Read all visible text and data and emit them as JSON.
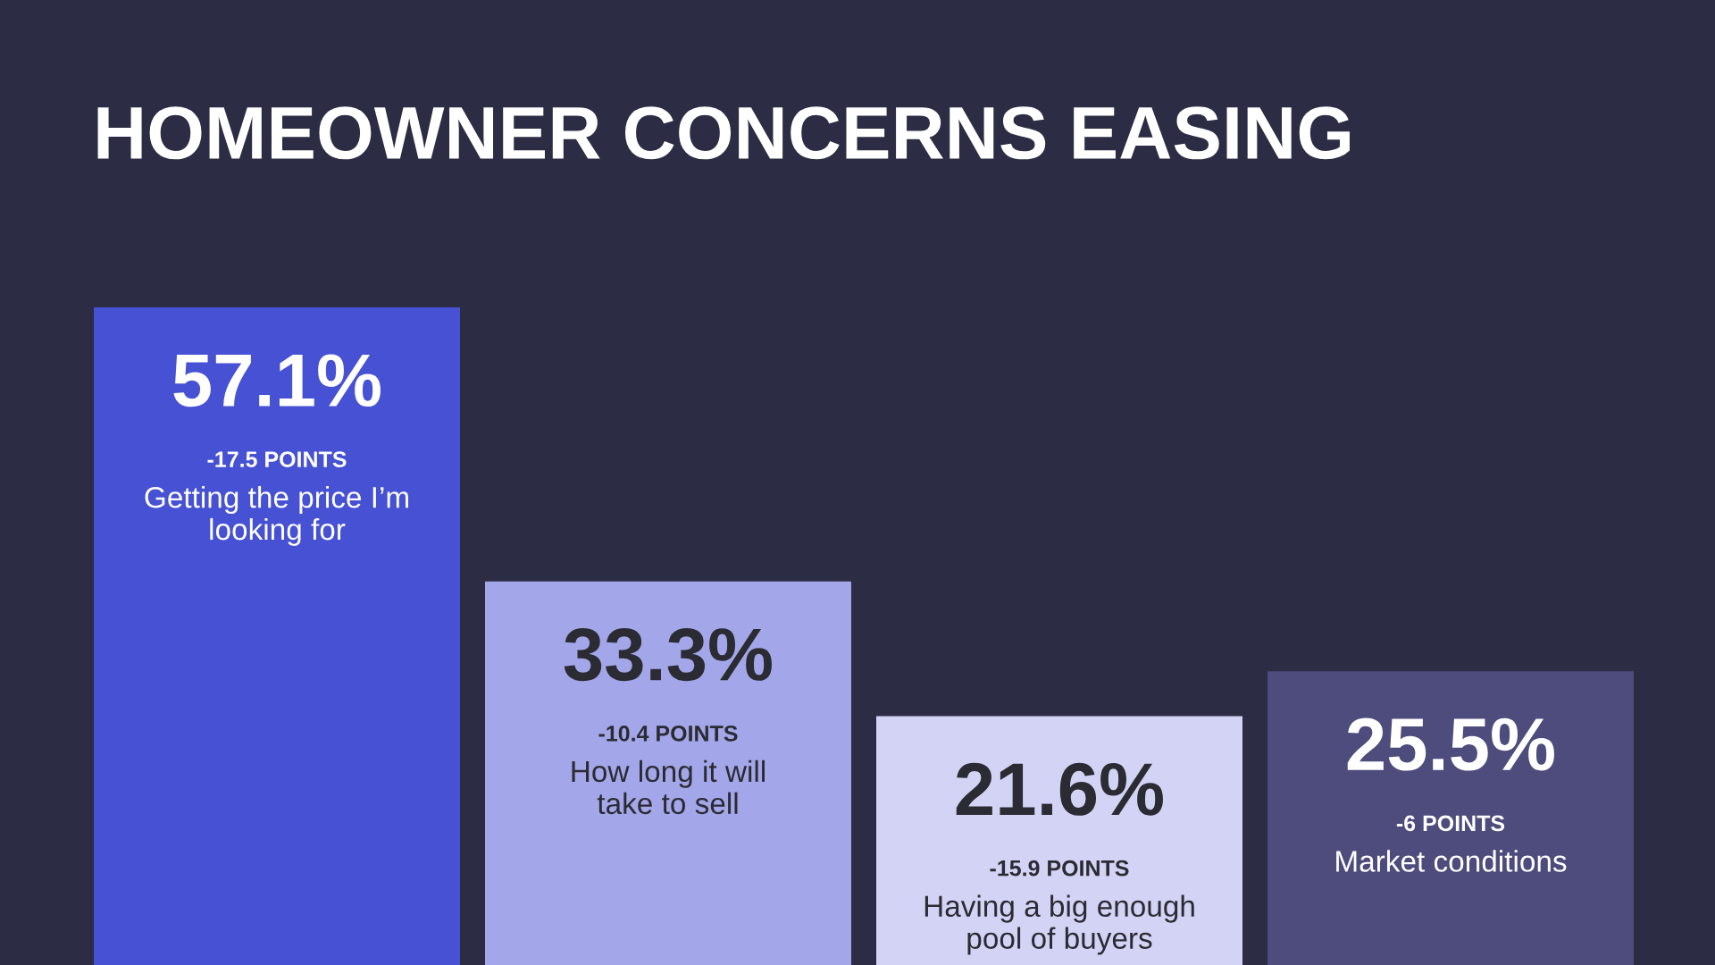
{
  "chart_data": {
    "type": "bar",
    "title": "HOMEOWNER CONCERNS EASING",
    "categories": [
      "Getting the price I’m\nlooking for",
      "How long it will\ntake to sell",
      "Having a big enough\npool of buyers",
      "Market conditions"
    ],
    "values": [
      57.1,
      33.3,
      21.6,
      25.5
    ],
    "colors": [
      "#4651d4",
      "#a3a6e8",
      "#d3d4f5",
      "#4d4c7c"
    ],
    "value_labels": [
      "57.1%",
      "33.3%",
      "21.6%",
      "25.5%"
    ],
    "annotations": [
      "-17.5 POINTS",
      "-10.4 POINTS",
      "-15.9 POINTS",
      "-6 POINTS"
    ],
    "legend": false
  }
}
